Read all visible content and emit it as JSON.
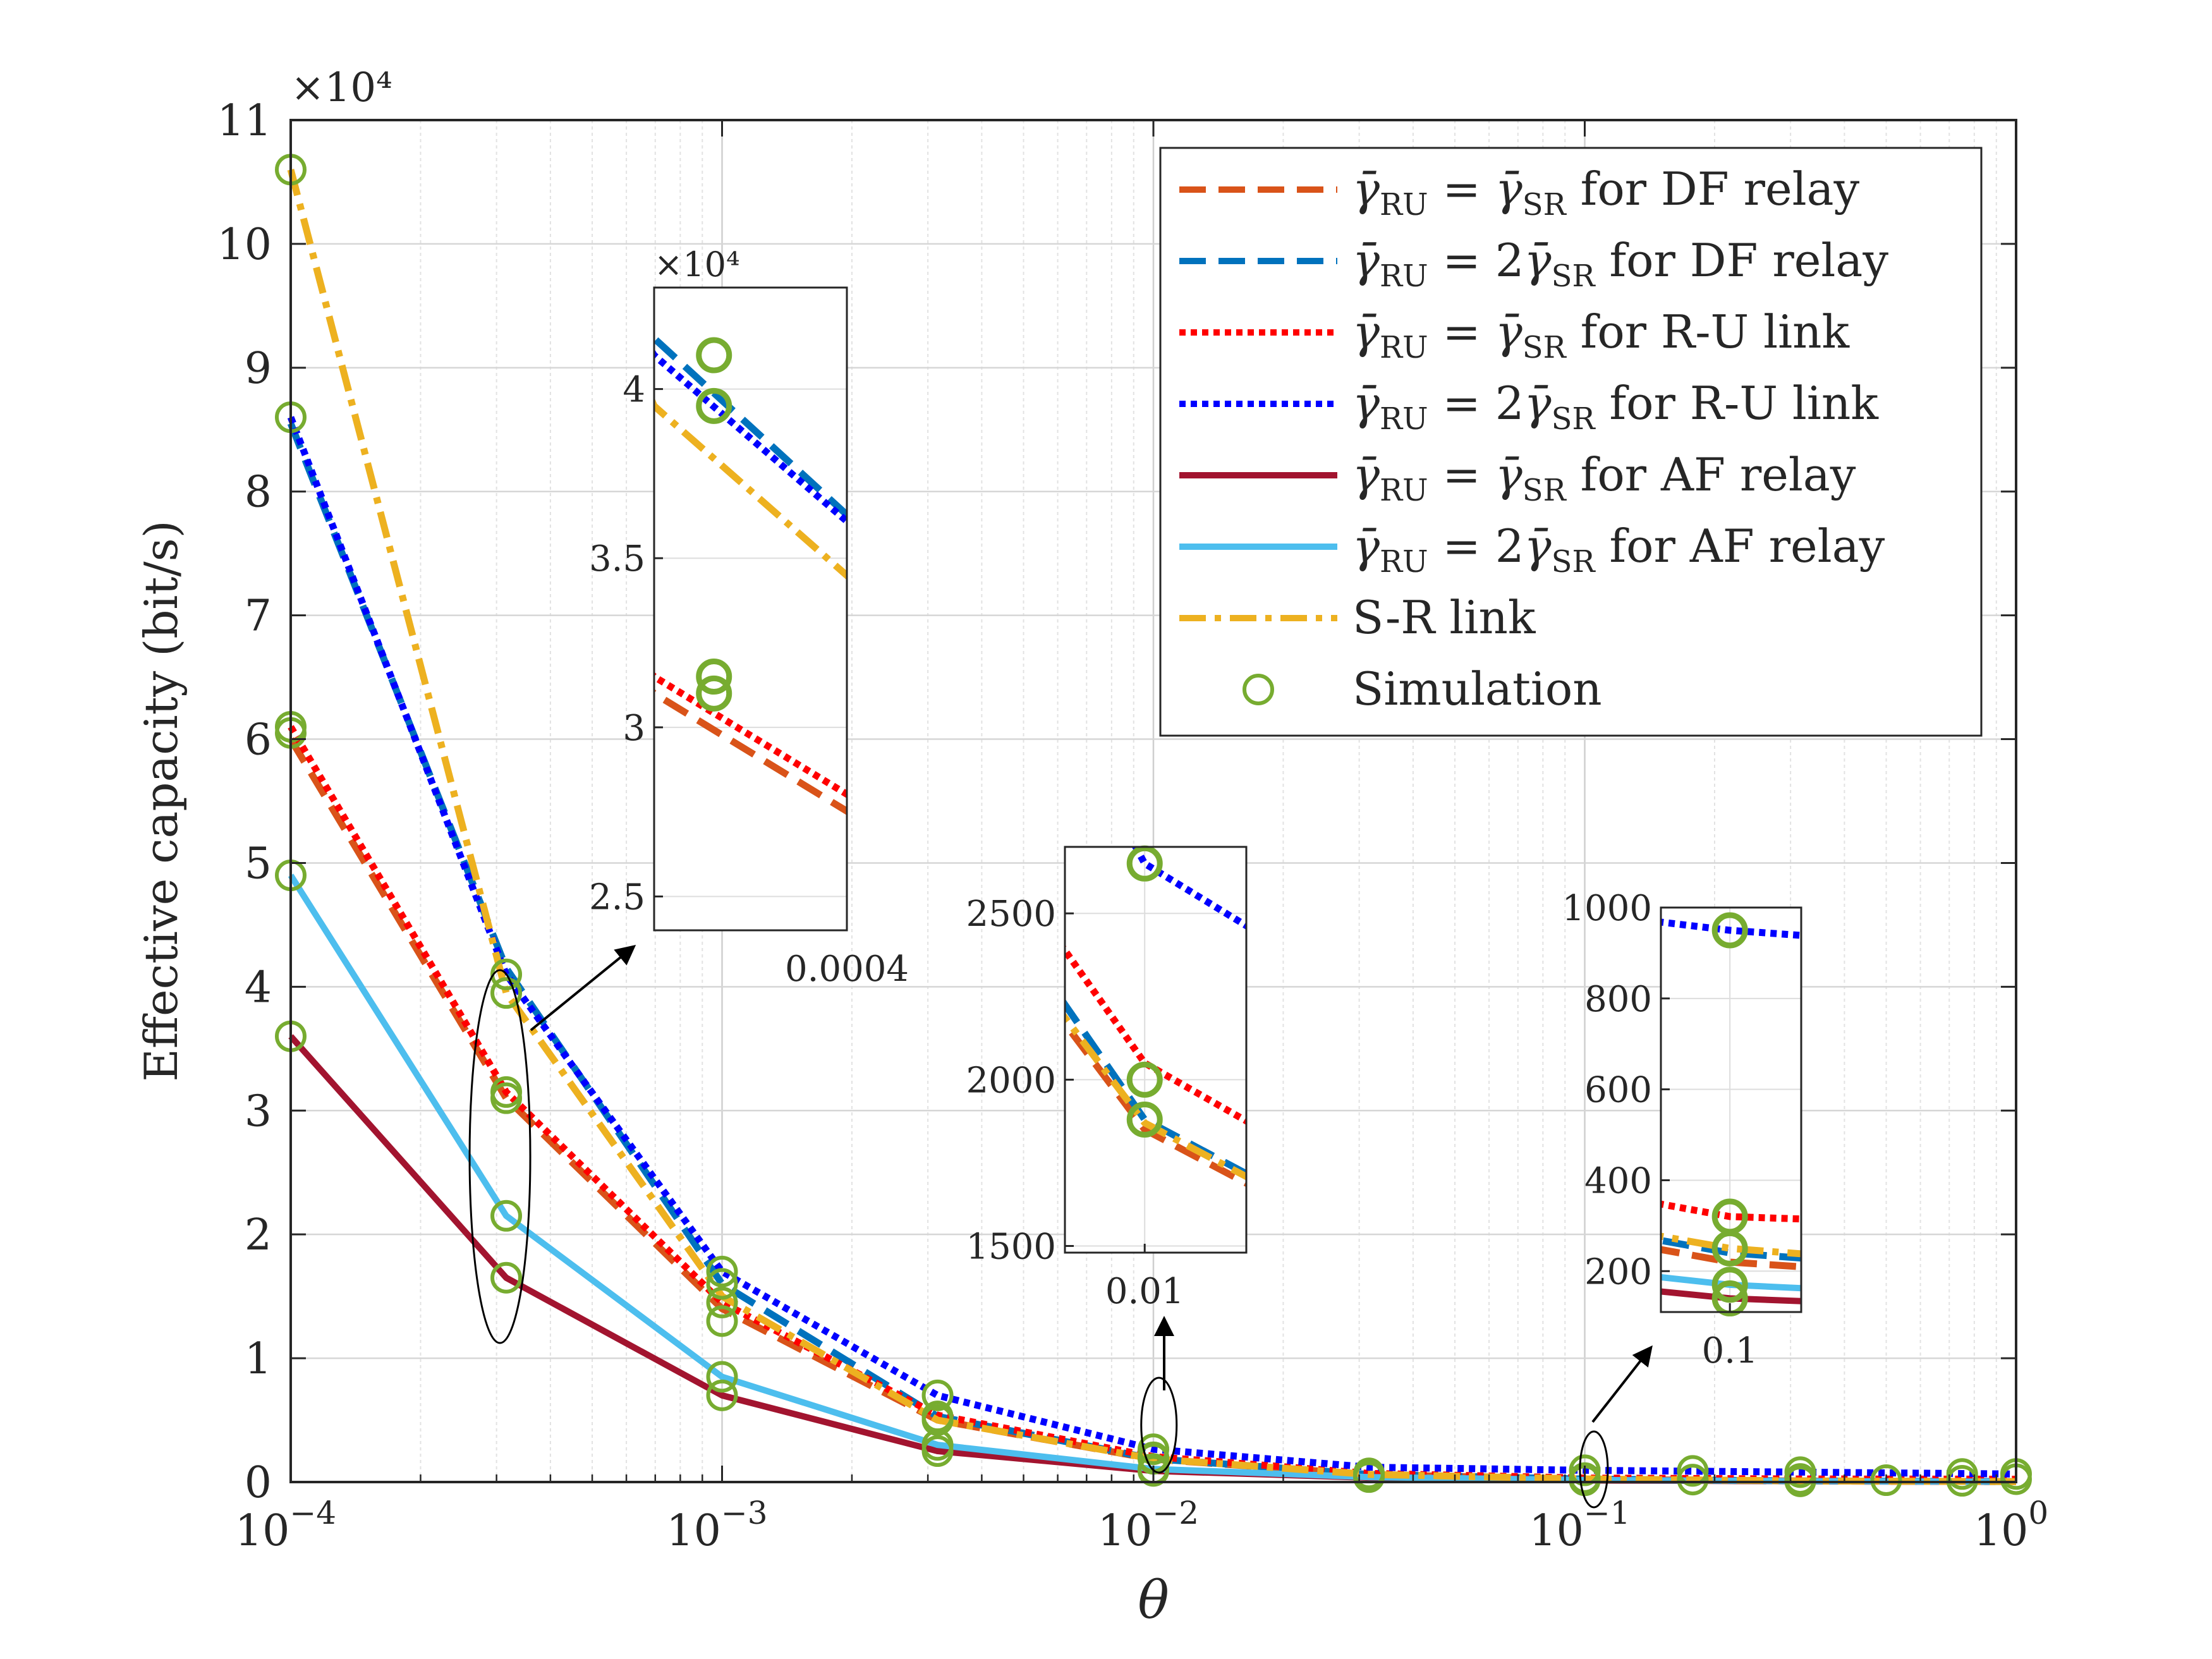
{
  "chart_data": {
    "type": "line",
    "title": "",
    "xlabel": "θ",
    "ylabel": "Effective capacity (bit/s)",
    "xscale": "log",
    "xlim": [
      0.0001,
      1
    ],
    "ylim": [
      0,
      110000
    ],
    "y_multiplier_label": "×10⁴",
    "x_tick_values": [
      0.0001,
      0.001,
      0.01,
      0.1,
      1
    ],
    "x_tick_labels": [
      {
        "base": "10",
        "exp": "−4"
      },
      {
        "base": "10",
        "exp": "−3"
      },
      {
        "base": "10",
        "exp": "−2"
      },
      {
        "base": "10",
        "exp": "−1"
      },
      {
        "base": "10",
        "exp": "0"
      }
    ],
    "y_tick_values": [
      0,
      10000,
      20000,
      30000,
      40000,
      50000,
      60000,
      70000,
      80000,
      90000,
      100000,
      110000
    ],
    "y_tick_labels": [
      "0",
      "1",
      "2",
      "3",
      "4",
      "5",
      "6",
      "7",
      "8",
      "9",
      "10",
      "11"
    ],
    "grid": true,
    "legend_position": "top-right",
    "colors": {
      "df_equal": "#D95319",
      "df_double": "#0072BD",
      "ru_equal": "#FF0000",
      "ru_double": "#0000FF",
      "af_equal": "#A2142F",
      "af_double": "#4DBEEE",
      "sr_link": "#EDB120",
      "simulation": "#77AC30"
    },
    "series": [
      {
        "name": "γ̄RU = γ̄SR for DF relay",
        "legend": {
          "a": "RU",
          "coef": "",
          "b": "SR",
          "suffix": "for DF relay"
        },
        "style": "dashed",
        "color": "#D95319",
        "x": [
          0.0001,
          0.000316,
          0.001,
          0.00316,
          0.01,
          0.0316,
          0.1,
          0.316,
          1
        ],
        "values": [
          60000,
          31000,
          14000,
          5000,
          1850,
          600,
          220,
          80,
          30
        ]
      },
      {
        "name": "γ̄RU = 2γ̄SR for DF relay",
        "legend": {
          "a": "RU",
          "coef": "2",
          "b": "SR",
          "suffix": "for DF relay"
        },
        "style": "dashed",
        "color": "#0072BD",
        "x": [
          0.0001,
          0.000316,
          0.001,
          0.00316,
          0.01,
          0.0316,
          0.1,
          0.316,
          1
        ],
        "values": [
          85500,
          41500,
          16000,
          5300,
          1880,
          620,
          240,
          90,
          35
        ]
      },
      {
        "name": "γ̄RU = γ̄SR for R-U link",
        "legend": {
          "a": "RU",
          "coef": "",
          "b": "SR",
          "suffix": "for R-U link"
        },
        "style": "dotted",
        "color": "#FF0000",
        "x": [
          0.0001,
          0.000316,
          0.001,
          0.00316,
          0.01,
          0.0316,
          0.1,
          0.316,
          1
        ],
        "values": [
          61000,
          31500,
          14500,
          5400,
          2050,
          700,
          320,
          250,
          230
        ]
      },
      {
        "name": "γ̄RU = 2γ̄SR for R-U link",
        "legend": {
          "a": "RU",
          "coef": "2",
          "b": "SR",
          "suffix": "for R-U link"
        },
        "style": "dotted",
        "color": "#0000FF",
        "x": [
          0.0001,
          0.000316,
          0.001,
          0.00316,
          0.01,
          0.0316,
          0.1,
          0.316,
          1
        ],
        "values": [
          86000,
          41000,
          17000,
          7000,
          2650,
          1200,
          950,
          800,
          650
        ]
      },
      {
        "name": "γ̄RU = γ̄SR for AF relay",
        "legend": {
          "a": "RU",
          "coef": "",
          "b": "SR",
          "suffix": "for AF relay"
        },
        "style": "solid",
        "color": "#A2142F",
        "x": [
          0.0001,
          0.000316,
          0.001,
          0.00316,
          0.01,
          0.0316,
          0.1,
          0.316,
          1
        ],
        "values": [
          36000,
          16500,
          7000,
          2500,
          900,
          350,
          140,
          60,
          25
        ]
      },
      {
        "name": "γ̄RU = 2γ̄SR for AF relay",
        "legend": {
          "a": "RU",
          "coef": "2",
          "b": "SR",
          "suffix": "for AF relay"
        },
        "style": "solid",
        "color": "#4DBEEE",
        "x": [
          0.0001,
          0.000316,
          0.001,
          0.00316,
          0.01,
          0.0316,
          0.1,
          0.316,
          1
        ],
        "values": [
          49000,
          21500,
          8500,
          3000,
          1050,
          400,
          170,
          70,
          30
        ]
      },
      {
        "name": "S-R link",
        "legend": {
          "label": "S-R link"
        },
        "style": "dashdot",
        "color": "#EDB120",
        "x": [
          0.0001,
          0.000316,
          0.001,
          0.00316,
          0.01,
          0.0316,
          0.1,
          0.316,
          1
        ],
        "values": [
          106000,
          39500,
          15000,
          5000,
          1870,
          620,
          250,
          90,
          35
        ]
      },
      {
        "name": "Simulation",
        "legend": {
          "label": "Simulation"
        },
        "style": "markers",
        "color": "#77AC30",
        "points": [
          [
            0.0001,
            106000
          ],
          [
            0.0001,
            86000
          ],
          [
            0.0001,
            61000
          ],
          [
            0.0001,
            60500
          ],
          [
            0.0001,
            49000
          ],
          [
            0.0001,
            36000
          ],
          [
            0.000316,
            41000
          ],
          [
            0.000316,
            39500
          ],
          [
            0.000316,
            31500
          ],
          [
            0.000316,
            31000
          ],
          [
            0.000316,
            21500
          ],
          [
            0.000316,
            16500
          ],
          [
            0.001,
            17000
          ],
          [
            0.001,
            16000
          ],
          [
            0.001,
            14500
          ],
          [
            0.001,
            13000
          ],
          [
            0.001,
            8500
          ],
          [
            0.001,
            7000
          ],
          [
            0.00316,
            7000
          ],
          [
            0.00316,
            5300
          ],
          [
            0.00316,
            5000
          ],
          [
            0.00316,
            3000
          ],
          [
            0.00316,
            2500
          ],
          [
            0.01,
            2650
          ],
          [
            0.01,
            2000
          ],
          [
            0.01,
            1880
          ],
          [
            0.01,
            1050
          ],
          [
            0.01,
            900
          ],
          [
            0.0316,
            700
          ],
          [
            0.0316,
            620
          ],
          [
            0.0316,
            400
          ],
          [
            0.1,
            950
          ],
          [
            0.1,
            320
          ],
          [
            0.1,
            250
          ],
          [
            0.1,
            170
          ],
          [
            0.1,
            140
          ],
          [
            0.178,
            900
          ],
          [
            0.178,
            200
          ],
          [
            0.316,
            800
          ],
          [
            0.316,
            250
          ],
          [
            0.316,
            60
          ],
          [
            0.5,
            150
          ],
          [
            0.75,
            650
          ],
          [
            0.75,
            100
          ],
          [
            1,
            650
          ],
          [
            1,
            230
          ]
        ]
      }
    ],
    "insets": [
      {
        "name": "inset-1",
        "xlim": [
          0.000316,
          0.0004
        ],
        "ylim": [
          24000,
          43000
        ],
        "y_multiplier_label": "×10⁴",
        "y_ticks": [
          {
            "v": 25000,
            "label": "2.5"
          },
          {
            "v": 30000,
            "label": "3"
          },
          {
            "v": 35000,
            "label": "3.5"
          },
          {
            "v": 40000,
            "label": "4"
          }
        ],
        "x_ticks": [
          {
            "v": 0.0004,
            "label": "0.0004"
          }
        ],
        "points": [
          [
            0.00034,
            41000
          ],
          [
            0.00034,
            39500
          ],
          [
            0.00034,
            31500
          ],
          [
            0.00034,
            31000
          ]
        ]
      },
      {
        "name": "inset-2",
        "xlim": [
          0.0089,
          0.0116
        ],
        "ylim": [
          1480,
          2700
        ],
        "y_ticks": [
          {
            "v": 1500,
            "label": "1500"
          },
          {
            "v": 2000,
            "label": "2000"
          },
          {
            "v": 2500,
            "label": "2500"
          }
        ],
        "x_ticks": [
          {
            "v": 0.01,
            "label": "0.01"
          }
        ],
        "points": [
          [
            0.01,
            2650
          ],
          [
            0.01,
            2000
          ],
          [
            0.01,
            1880
          ]
        ]
      },
      {
        "name": "inset-3",
        "xlim": [
          0.092,
          0.109
        ],
        "ylim": [
          110,
          1000
        ],
        "y_ticks": [
          {
            "v": 200,
            "label": "200"
          },
          {
            "v": 400,
            "label": "400"
          },
          {
            "v": 600,
            "label": "600"
          },
          {
            "v": 800,
            "label": "800"
          },
          {
            "v": 1000,
            "label": "1000"
          }
        ],
        "x_ticks": [
          {
            "v": 0.1,
            "label": "0.1"
          }
        ],
        "points": [
          [
            0.1,
            950
          ],
          [
            0.1,
            320
          ],
          [
            0.1,
            250
          ],
          [
            0.1,
            170
          ],
          [
            0.1,
            140
          ]
        ]
      }
    ]
  }
}
